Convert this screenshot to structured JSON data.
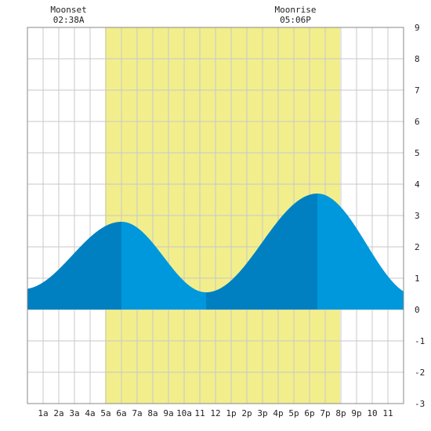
{
  "chart_data": {
    "type": "area",
    "title": "",
    "xlabel": "",
    "ylabel": "",
    "x_tick_labels": [
      "1a",
      "2a",
      "3a",
      "4a",
      "5a",
      "6a",
      "7a",
      "8a",
      "9a",
      "10a",
      "11",
      "12",
      "1p",
      "2p",
      "3p",
      "4p",
      "5p",
      "6p",
      "7p",
      "8p",
      "9p",
      "10",
      "11"
    ],
    "xlim": [
      0,
      24
    ],
    "ylim": [
      -3,
      9
    ],
    "y_ticks": [
      -3,
      -2,
      -1,
      0,
      1,
      2,
      3,
      4,
      5,
      6,
      7,
      8,
      9
    ],
    "grid": true,
    "daylight": {
      "start_hour": 4.95,
      "end_hour": 19.95,
      "color": "#f2ee8c"
    },
    "colors": {
      "ebb": "#0080c0",
      "flood": "#0098dc",
      "grid": "#c8c8c8",
      "frame": "#888888"
    },
    "extremes": [
      {
        "type": "high",
        "hour": 6.0,
        "height": 2.8
      },
      {
        "type": "low",
        "hour": 11.4,
        "height": 0.55
      },
      {
        "type": "high",
        "hour": 18.5,
        "height": 3.7
      },
      {
        "type": "low",
        "hour": 24.8,
        "height": 0.45
      },
      {
        "type": "low",
        "hour": -0.3,
        "height": 0.65
      }
    ],
    "annotations": [
      {
        "name": "moonset",
        "title": "Moonset",
        "time": "02:38A",
        "hour": 2.63
      },
      {
        "name": "moonrise",
        "title": "Moonrise",
        "time": "05:06P",
        "hour": 17.1
      }
    ]
  }
}
